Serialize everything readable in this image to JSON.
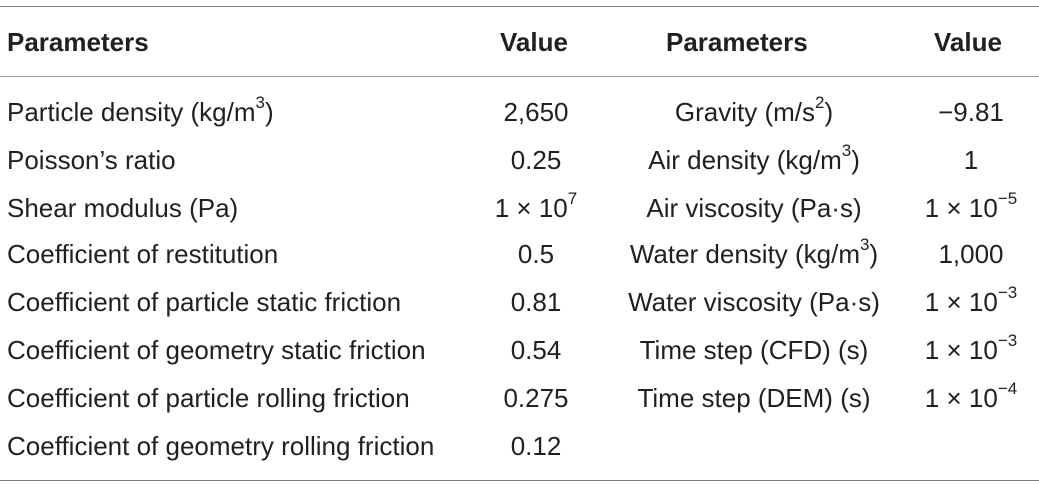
{
  "header": {
    "col1": "Parameters",
    "col2": "Value",
    "col3": "Parameters",
    "col4": "Value"
  },
  "rows": [
    {
      "p1": "Particle density (kg/m",
      "p1_sup": "3",
      "p1_tail": ")",
      "v1": "2,650",
      "v1_sup": "",
      "p2": "Gravity (m/s",
      "p2_sup": "2",
      "p2_tail": ")",
      "v2": "−9.81",
      "v2_sup": ""
    },
    {
      "p1": "Poisson’s ratio",
      "p1_sup": "",
      "p1_tail": "",
      "v1": "0.25",
      "v1_sup": "",
      "p2": "Air density (kg/m",
      "p2_sup": "3",
      "p2_tail": ")",
      "v2": "1",
      "v2_sup": ""
    },
    {
      "p1": "Shear modulus (Pa)",
      "p1_sup": "",
      "p1_tail": "",
      "v1": "1 × 10",
      "v1_sup": "7",
      "p2": "Air viscosity (Pa·s)",
      "p2_sup": "",
      "p2_tail": "",
      "v2": "1 × 10",
      "v2_sup": "−5"
    },
    {
      "p1": "Coefficient of restitution",
      "p1_sup": "",
      "p1_tail": "",
      "v1": "0.5",
      "v1_sup": "",
      "p2": "Water density (kg/m",
      "p2_sup": "3",
      "p2_tail": ")",
      "v2": "1,000",
      "v2_sup": ""
    },
    {
      "p1": "Coefficient of particle static friction",
      "p1_sup": "",
      "p1_tail": "",
      "v1": "0.81",
      "v1_sup": "",
      "p2": "Water viscosity (Pa·s)",
      "p2_sup": "",
      "p2_tail": "",
      "v2": "1 × 10",
      "v2_sup": "−3"
    },
    {
      "p1": "Coefficient of geometry static friction",
      "p1_sup": "",
      "p1_tail": "",
      "v1": "0.54",
      "v1_sup": "",
      "p2": "Time step (CFD) (s)",
      "p2_sup": "",
      "p2_tail": "",
      "v2": "1 × 10",
      "v2_sup": "−3"
    },
    {
      "p1": "Coefficient of particle rolling friction",
      "p1_sup": "",
      "p1_tail": "",
      "v1": "0.275",
      "v1_sup": "",
      "p2": "Time step (DEM) (s)",
      "p2_sup": "",
      "p2_tail": "",
      "v2": "1 × 10",
      "v2_sup": "−4"
    },
    {
      "p1": "Coefficient of geometry rolling friction",
      "p1_sup": "",
      "p1_tail": "",
      "v1": "0.12",
      "v1_sup": "",
      "p2": "",
      "p2_sup": "",
      "p2_tail": "",
      "v2": "",
      "v2_sup": ""
    }
  ]
}
